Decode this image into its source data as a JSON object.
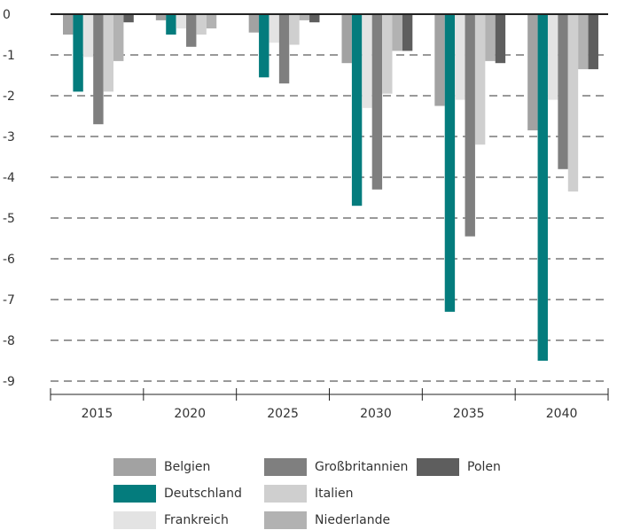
{
  "chart_data": {
    "type": "bar",
    "title": "",
    "xlabel": "",
    "ylabel": "",
    "categories": [
      "2015",
      "2020",
      "2025",
      "2030",
      "2035",
      "2040"
    ],
    "ylim": [
      -9,
      0
    ],
    "yticks": [
      "0",
      "-1",
      "-2",
      "-3",
      "-4",
      "-5",
      "-6",
      "-7",
      "-8",
      "-9"
    ],
    "grid": true,
    "legend_position": "bottom",
    "series": [
      {
        "name": "Belgien",
        "color": "#a2a2a2",
        "values": [
          -0.5,
          -0.15,
          -0.45,
          -1.2,
          -2.25,
          -2.85
        ]
      },
      {
        "name": "Deutschland",
        "color": "#047c7d",
        "values": [
          -1.9,
          -0.5,
          -1.55,
          -4.7,
          -7.3,
          -8.5
        ]
      },
      {
        "name": "Frankreich",
        "color": "#e3e3e3",
        "values": [
          -1.05,
          -0.35,
          -0.7,
          -2.3,
          -2.1,
          -2.1
        ]
      },
      {
        "name": "Großbritannien",
        "color": "#7f7f7f",
        "values": [
          -2.7,
          -0.8,
          -1.7,
          -4.3,
          -5.45,
          -3.8
        ]
      },
      {
        "name": "Italien",
        "color": "#cfcfcf",
        "values": [
          -1.9,
          -0.5,
          -0.75,
          -1.95,
          -3.2,
          -4.35
        ]
      },
      {
        "name": "Niederlande",
        "color": "#b2b2b2",
        "values": [
          -1.15,
          -0.35,
          -0.15,
          -0.9,
          -1.15,
          -1.35
        ]
      },
      {
        "name": "Polen",
        "color": "#5e5e5e",
        "values": [
          -0.2,
          -0.0,
          -0.2,
          -0.9,
          -1.2,
          -1.35
        ]
      }
    ]
  },
  "legend": [
    {
      "label": "Belgien",
      "color": "#a2a2a2"
    },
    {
      "label": "Deutschland",
      "color": "#047c7d"
    },
    {
      "label": "Frankreich",
      "color": "#e3e3e3"
    },
    {
      "label": "Großbritannien",
      "color": "#7f7f7f"
    },
    {
      "label": "Italien",
      "color": "#cfcfcf"
    },
    {
      "label": "Niederlande",
      "color": "#b2b2b2"
    },
    {
      "label": "Polen",
      "color": "#5e5e5e"
    }
  ]
}
